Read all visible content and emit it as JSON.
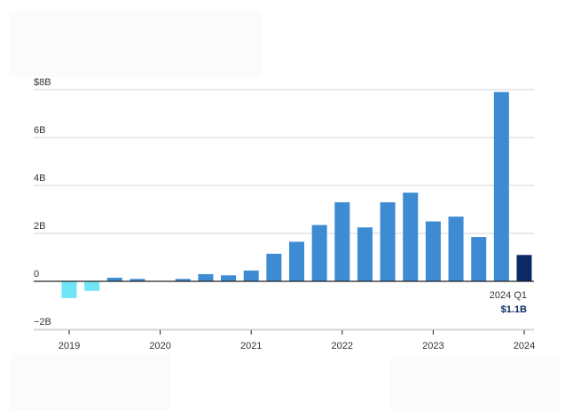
{
  "colors": {
    "positive": "#3d8bd3",
    "negative": "#6ee6f6",
    "highlight": "#0a2a66",
    "grid": "#d6d6d6",
    "zero_line": "#222222",
    "tick_text": "#333333"
  },
  "chart_data": {
    "type": "bar",
    "title": "",
    "xlabel": "",
    "ylabel": "",
    "ylim": [
      -2,
      8
    ],
    "y_unit": "billion USD",
    "y_ticks": [
      {
        "value": 8,
        "label": "$8B"
      },
      {
        "value": 6,
        "label": "6B"
      },
      {
        "value": 4,
        "label": "4B"
      },
      {
        "value": 2,
        "label": "2B"
      },
      {
        "value": 0,
        "label": "0"
      },
      {
        "value": -2,
        "label": "−2B"
      }
    ],
    "x_ticks": [
      "2019",
      "2020",
      "2021",
      "2022",
      "2023",
      "2024"
    ],
    "grid": true,
    "legend": "none",
    "categories": [
      "2019 Q1",
      "2019 Q2",
      "2019 Q3",
      "2019 Q4",
      "2020 Q1",
      "2020 Q2",
      "2020 Q3",
      "2020 Q4",
      "2021 Q1",
      "2021 Q2",
      "2021 Q3",
      "2021 Q4",
      "2022 Q1",
      "2022 Q2",
      "2022 Q3",
      "2022 Q4",
      "2023 Q1",
      "2023 Q2",
      "2023 Q3",
      "2023 Q4",
      "2024 Q1"
    ],
    "values": [
      -0.7,
      -0.4,
      0.15,
      0.1,
      0.0,
      0.1,
      0.3,
      0.25,
      0.45,
      1.15,
      1.65,
      2.35,
      3.3,
      2.25,
      3.3,
      3.7,
      2.5,
      2.7,
      1.85,
      7.9,
      1.1
    ],
    "annotation": {
      "label": "2024 Q1",
      "value_label": "$1.1B"
    }
  }
}
